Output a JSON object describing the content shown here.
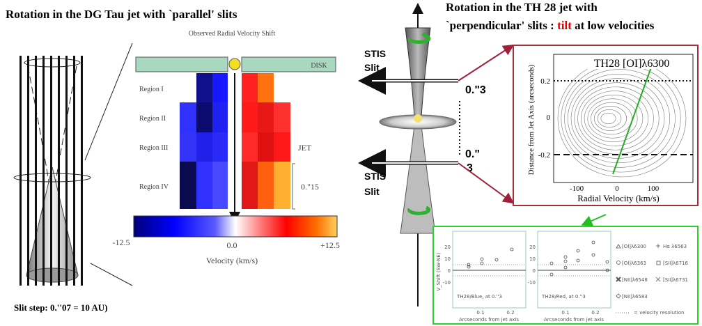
{
  "left_panel": {
    "title": "Rotation in the DG Tau jet with `parallel' slits",
    "figure_title": "Observed Radial Velocity Shift",
    "disk_label": "DISK",
    "jet_label": "JET",
    "regions": [
      "Region I",
      "Region II",
      "Region III",
      "Region IV"
    ],
    "scale_label": "0.\"15",
    "slit_step": "Slit step: 0.''07 = 10 AU)",
    "colorbar_ticks": [
      "-12.5",
      "0.0",
      "+12.5"
    ],
    "colorbar_label": "Velocity (km/s)"
  },
  "right_panel": {
    "title_line1": "Rotation in the TH 28 jet with",
    "title_line2": [
      "`perpendicular' slits : ",
      "tilt",
      " at  low velocities"
    ],
    "slit_label_top": [
      "STIS",
      "Slit"
    ],
    "slit_label_bottom": [
      "STIS",
      "Slit"
    ],
    "offset_top": "0.\"3",
    "offset_bottom": [
      "0.\"",
      "3"
    ],
    "contour_plot": {
      "title": "TH28 [OI]λ6300",
      "y_label": "Distance from Jet Axis (arcseconds)",
      "x_label": "Radial Velocity (km/s)",
      "y_ticks": [
        "0.2",
        "0",
        "-0.2"
      ],
      "x_ticks": [
        "-100",
        "0",
        "100"
      ]
    },
    "shift_plot": {
      "y_label": "V_Shift (SW-NE)",
      "y_ticks": [
        "20",
        "10",
        "0",
        "-10"
      ],
      "x_ticks": [
        "0.1",
        "0.2"
      ],
      "x_label": "Arcseconds from jet axis",
      "panel_labels": [
        "TH28/Blue, at 0.''3",
        "TH28/Red, at 0.''3"
      ],
      "legend": [
        "[OI]λ6300",
        "Hα λ6563",
        "[OI]λ6363",
        "[SII]λ6716",
        "[NII]λ6548",
        "[SII]λ6731",
        "[NII]λ6583",
        "= velocity resolution"
      ]
    }
  }
}
